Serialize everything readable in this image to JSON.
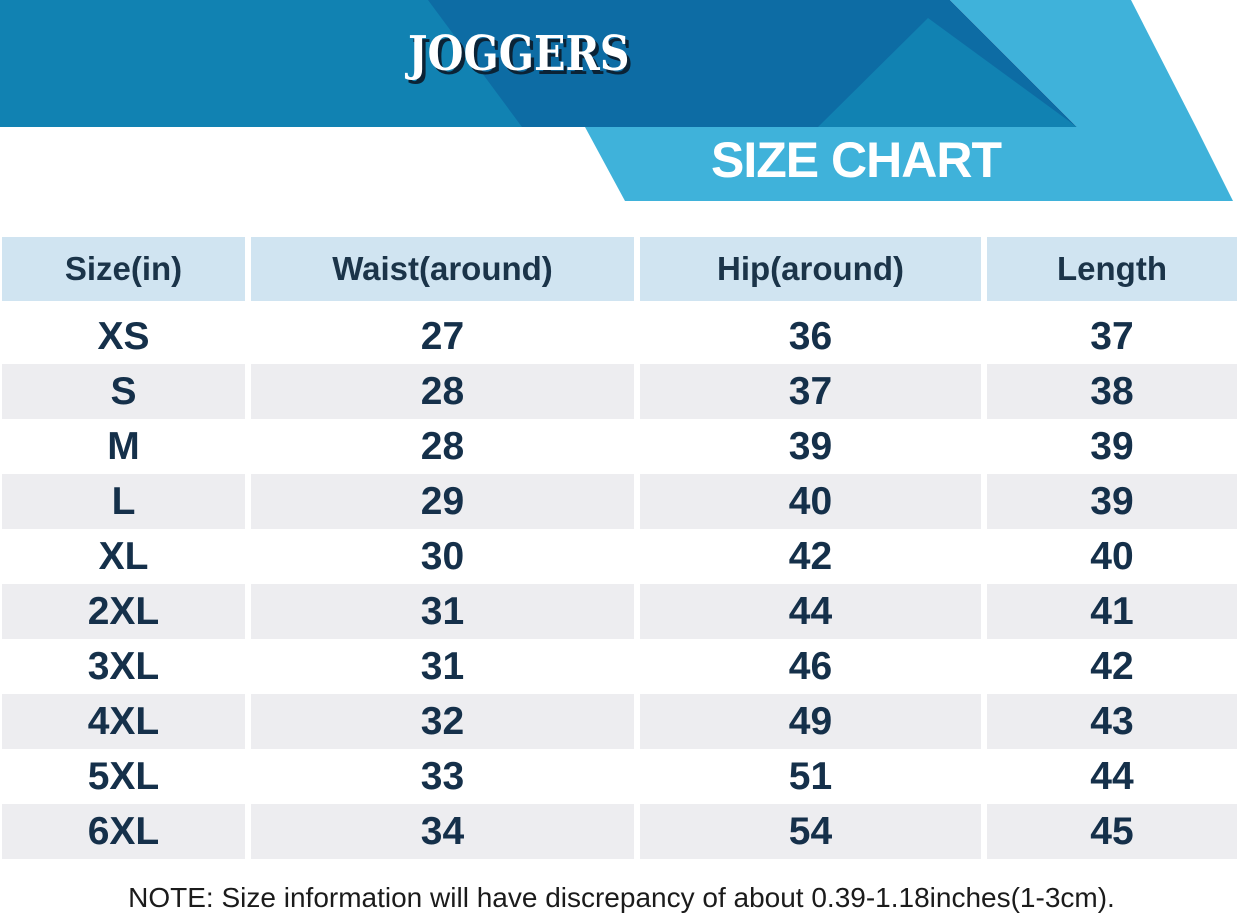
{
  "header": {
    "product_title": "JOGGERS",
    "banner_title": "SIZE CHART",
    "colors": {
      "medium_blue": "#1182b2",
      "dark_blue": "#0d6ca4",
      "light_cyan": "#3fb2da",
      "header_cell_bg": "#d0e4f1",
      "stripe_gray": "#ededf0",
      "navy_text": "#15304a"
    }
  },
  "table": {
    "columns": [
      "Size(in)",
      "Waist(around)",
      "Hip(around)",
      "Length"
    ],
    "rows": [
      {
        "cells": [
          "XS",
          "27",
          "36",
          "37"
        ]
      },
      {
        "cells": [
          "S",
          "28",
          "37",
          "38"
        ]
      },
      {
        "cells": [
          "M",
          "28",
          "39",
          "39"
        ]
      },
      {
        "cells": [
          "L",
          "29",
          "40",
          "39"
        ]
      },
      {
        "cells": [
          "XL",
          "30",
          "42",
          "40"
        ]
      },
      {
        "cells": [
          "2XL",
          "31",
          "44",
          "41"
        ]
      },
      {
        "cells": [
          "3XL",
          "31",
          "46",
          "42"
        ]
      },
      {
        "cells": [
          "4XL",
          "32",
          "49",
          "43"
        ]
      },
      {
        "cells": [
          "5XL",
          "33",
          "51",
          "44"
        ]
      },
      {
        "cells": [
          "6XL",
          "34",
          "54",
          "45"
        ]
      }
    ]
  },
  "note": "NOTE: Size information will have discrepancy of about 0.39-1.18inches(1-3cm).",
  "chart_data": {
    "type": "table",
    "title": "SIZE CHART",
    "subtitle": "JOGGERS",
    "columns": [
      "Size(in)",
      "Waist(around)",
      "Hip(around)",
      "Length"
    ],
    "rows": [
      [
        "XS",
        27,
        36,
        37
      ],
      [
        "S",
        28,
        37,
        38
      ],
      [
        "M",
        28,
        39,
        39
      ],
      [
        "L",
        29,
        40,
        39
      ],
      [
        "XL",
        30,
        42,
        40
      ],
      [
        "2XL",
        31,
        44,
        41
      ],
      [
        "3XL",
        31,
        46,
        42
      ],
      [
        "4XL",
        32,
        49,
        43
      ],
      [
        "5XL",
        33,
        51,
        44
      ],
      [
        "6XL",
        34,
        54,
        45
      ]
    ],
    "notes": "NOTE: Size information will have discrepancy of about 0.39-1.18inches(1-3cm)."
  }
}
